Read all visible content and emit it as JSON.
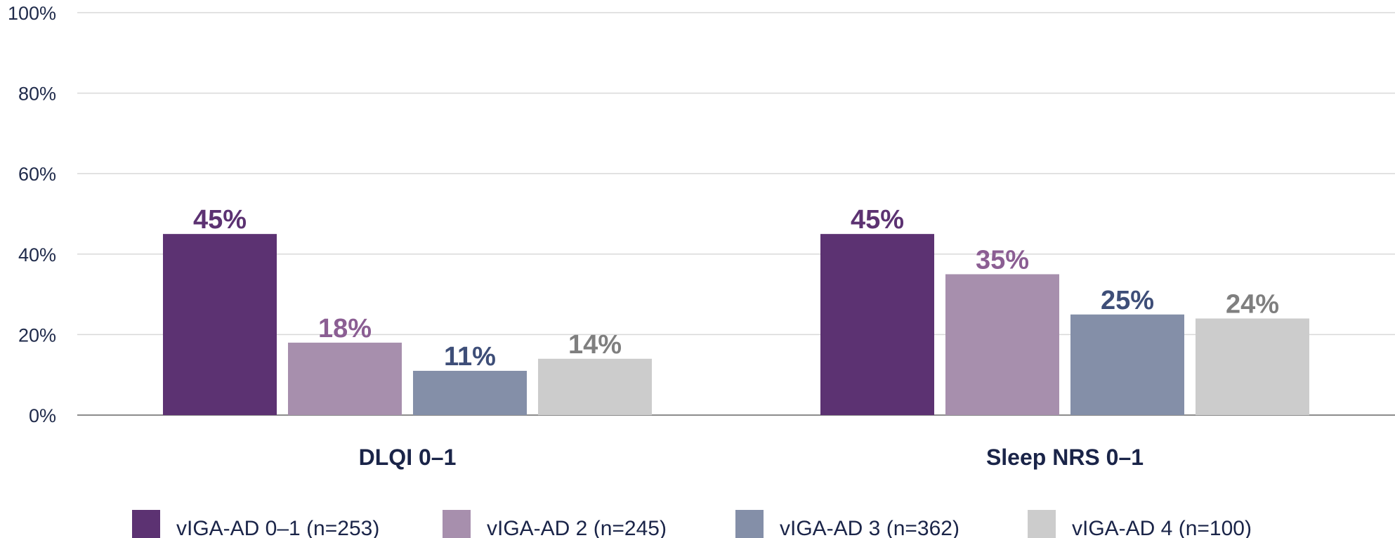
{
  "chart_data": {
    "type": "bar",
    "title": "",
    "xlabel": "",
    "ylabel": "",
    "categories": [
      "DLQI 0–1",
      "Sleep NRS 0–1"
    ],
    "ylim": [
      0,
      100
    ],
    "yticks": [
      0,
      20,
      40,
      60,
      80,
      100
    ],
    "ytick_labels": [
      "0%",
      "20%",
      "40%",
      "60%",
      "80%",
      "100%"
    ],
    "grid": true,
    "legend_position": "bottom",
    "series": [
      {
        "name": "vIGA-AD 0–1 (n=253)",
        "values": [
          45,
          45
        ],
        "labels": [
          "45%",
          "45%"
        ],
        "color": "#5c3272",
        "label_color": "#5c3272"
      },
      {
        "name": "vIGA-AD 2 (n=245)",
        "values": [
          18,
          35
        ],
        "labels": [
          "18%",
          "35%"
        ],
        "color": "#a78fad",
        "label_color": "#8b5e93"
      },
      {
        "name": "vIGA-AD 3 (n=362)",
        "values": [
          11,
          25
        ],
        "labels": [
          "11%",
          "25%"
        ],
        "color": "#848fa8",
        "label_color": "#3e4e78"
      },
      {
        "name": "vIGA-AD 4 (n=100)",
        "values": [
          14,
          24
        ],
        "labels": [
          "14%",
          "24%"
        ],
        "color": "#cccccc",
        "label_color": "#7f7f7f"
      }
    ]
  }
}
